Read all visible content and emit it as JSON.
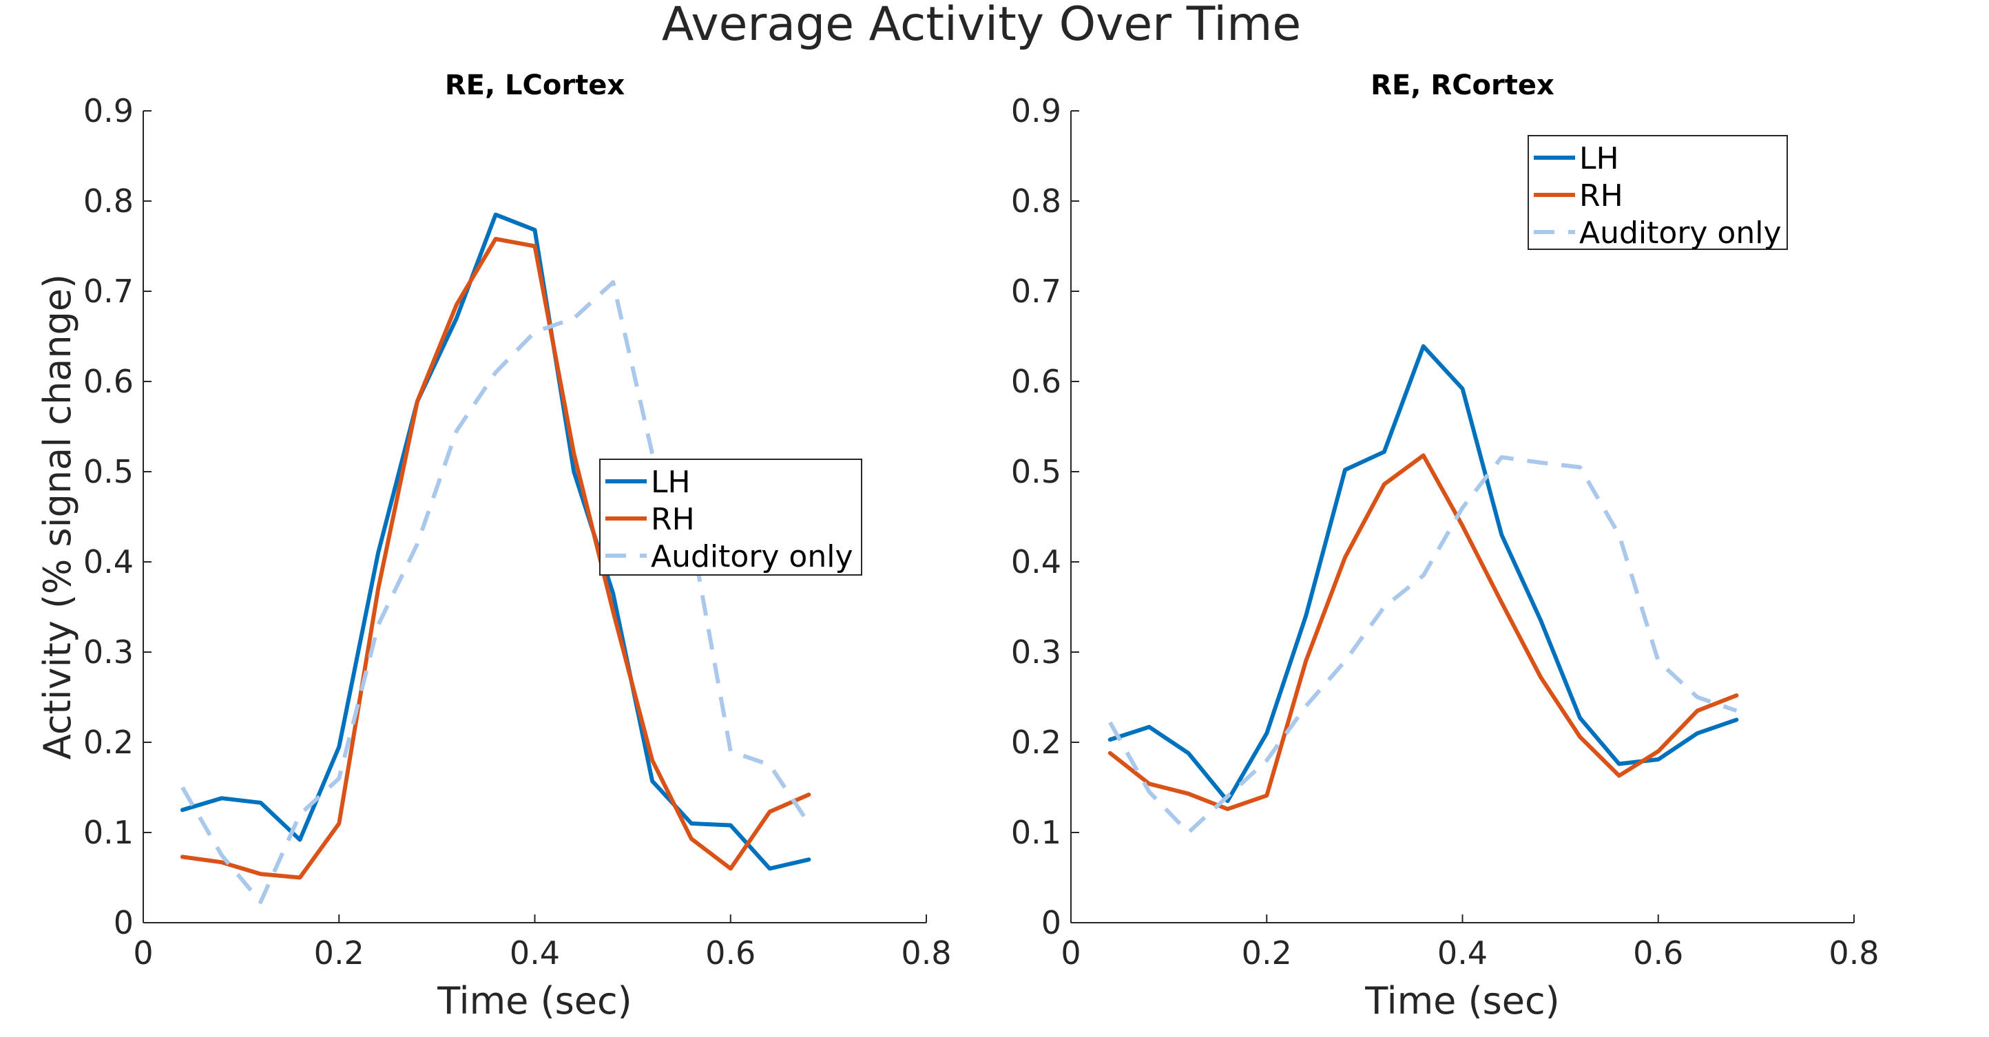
{
  "figure_title": "Average Activity Over Time",
  "colors": {
    "LH": "#0072BD",
    "RH": "#D95319",
    "Auditory only": "#A9C8EC",
    "axis": "#262626"
  },
  "chart_data": [
    {
      "type": "line",
      "title": "RE, LCortex",
      "xlabel": "Time (sec)",
      "ylabel": "Activity (% signal change)",
      "xlim": [
        0,
        0.8
      ],
      "ylim": [
        0,
        0.9
      ],
      "xticks": [
        0,
        0.2,
        0.4,
        0.6,
        0.8
      ],
      "xtick_labels": [
        "0",
        "0.2",
        "0.4",
        "0.6",
        "0.8"
      ],
      "yticks": [
        0,
        0.1,
        0.2,
        0.3,
        0.4,
        0.5,
        0.6,
        0.7,
        0.8,
        0.9
      ],
      "ytick_labels": [
        "0",
        "0.1",
        "0.2",
        "0.3",
        "0.4",
        "0.5",
        "0.6",
        "0.7",
        "0.8",
        "0.9"
      ],
      "grid": false,
      "legend_position": "center-right",
      "x": [
        0.04,
        0.08,
        0.12,
        0.16,
        0.2,
        0.24,
        0.28,
        0.32,
        0.36,
        0.4,
        0.44,
        0.48,
        0.52,
        0.56,
        0.6,
        0.64,
        0.68
      ],
      "series": [
        {
          "name": "LH",
          "style": "solid",
          "values": [
            0.125,
            0.138,
            0.133,
            0.092,
            0.195,
            0.41,
            0.578,
            0.67,
            0.785,
            0.768,
            0.5,
            0.365,
            0.157,
            0.11,
            0.108,
            0.06,
            0.07
          ]
        },
        {
          "name": "RH",
          "style": "solid",
          "values": [
            0.073,
            0.067,
            0.054,
            0.05,
            0.11,
            0.37,
            0.578,
            0.685,
            0.758,
            0.75,
            0.52,
            0.345,
            0.18,
            0.093,
            0.06,
            0.123,
            0.142
          ]
        },
        {
          "name": "Auditory only",
          "style": "dashed",
          "values": [
            0.15,
            0.075,
            0.023,
            0.12,
            0.16,
            0.33,
            0.42,
            0.545,
            0.61,
            0.655,
            0.67,
            0.71,
            0.52,
            0.43,
            0.19,
            0.175,
            0.11
          ]
        }
      ]
    },
    {
      "type": "line",
      "title": "RE, RCortex",
      "xlabel": "Time (sec)",
      "ylabel": "",
      "xlim": [
        0,
        0.8
      ],
      "ylim": [
        0,
        0.9
      ],
      "xticks": [
        0,
        0.2,
        0.4,
        0.6,
        0.8
      ],
      "xtick_labels": [
        "0",
        "0.2",
        "0.4",
        "0.6",
        "0.8"
      ],
      "yticks": [
        0,
        0.1,
        0.2,
        0.3,
        0.4,
        0.5,
        0.6,
        0.7,
        0.8,
        0.9
      ],
      "ytick_labels": [
        "0",
        "0.1",
        "0.2",
        "0.3",
        "0.4",
        "0.5",
        "0.6",
        "0.7",
        "0.8",
        "0.9"
      ],
      "grid": false,
      "legend_position": "top-right",
      "x": [
        0.04,
        0.08,
        0.12,
        0.16,
        0.2,
        0.24,
        0.28,
        0.32,
        0.36,
        0.4,
        0.44,
        0.48,
        0.52,
        0.56,
        0.6,
        0.64,
        0.68
      ],
      "series": [
        {
          "name": "LH",
          "style": "solid",
          "values": [
            0.203,
            0.217,
            0.188,
            0.135,
            0.21,
            0.34,
            0.502,
            0.522,
            0.639,
            0.592,
            0.43,
            0.335,
            0.227,
            0.176,
            0.181,
            0.21,
            0.225
          ]
        },
        {
          "name": "RH",
          "style": "solid",
          "values": [
            0.188,
            0.154,
            0.143,
            0.126,
            0.141,
            0.29,
            0.405,
            0.486,
            0.518,
            0.44,
            0.355,
            0.272,
            0.206,
            0.163,
            0.19,
            0.235,
            0.252
          ]
        },
        {
          "name": "Auditory only",
          "style": "dashed",
          "values": [
            0.222,
            0.145,
            0.1,
            0.14,
            0.18,
            0.24,
            0.29,
            0.35,
            0.385,
            0.46,
            0.516,
            0.51,
            0.505,
            0.43,
            0.29,
            0.25,
            0.235
          ]
        }
      ]
    }
  ]
}
